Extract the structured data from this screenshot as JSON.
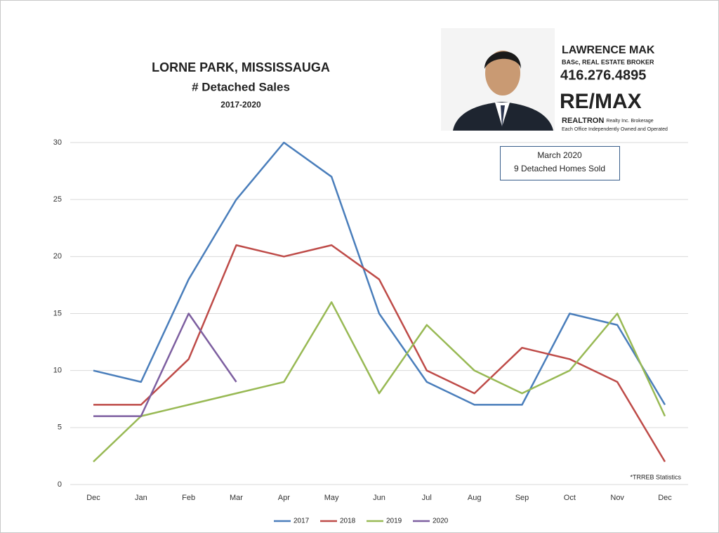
{
  "chart_data": {
    "type": "line",
    "title": "LORNE PARK, MISSISSAUGA",
    "subtitle": "# Detached Sales",
    "period": "2017-2020",
    "categories": [
      "Dec",
      "Jan",
      "Feb",
      "Mar",
      "Apr",
      "May",
      "Jun",
      "Jul",
      "Aug",
      "Sep",
      "Oct",
      "Nov",
      "Dec"
    ],
    "series": [
      {
        "name": "2017",
        "color": "#4a7ebb",
        "values": [
          10,
          9,
          18,
          25,
          30,
          27,
          15,
          9,
          7,
          7,
          15,
          14,
          7
        ]
      },
      {
        "name": "2018",
        "color": "#be4b48",
        "values": [
          7,
          7,
          11,
          21,
          20,
          21,
          18,
          10,
          8,
          12,
          11,
          9,
          2
        ]
      },
      {
        "name": "2019",
        "color": "#98b954",
        "values": [
          2,
          6,
          7,
          8,
          9,
          16,
          8,
          14,
          10,
          8,
          10,
          15,
          6
        ]
      },
      {
        "name": "2020",
        "color": "#7d5fa0",
        "values": [
          6,
          6,
          15,
          9,
          null,
          null,
          null,
          null,
          null,
          null,
          null,
          null,
          null
        ]
      }
    ],
    "ylim": [
      0,
      30
    ],
    "yticks": [
      0,
      5,
      10,
      15,
      20,
      25,
      30
    ],
    "grid": true,
    "legend": "bottom",
    "annotation": [
      "March 2020",
      "9 Detached Homes Sold"
    ],
    "source_note": "*TRREB Statistics",
    "branding": {
      "name": "LAWRENCE MAK",
      "credentials": "BASc, REAL ESTATE BROKER",
      "phone": "416.276.4895",
      "brand": "RE/MAX",
      "office": "REALTRON",
      "office_suffix": "Realty Inc. Brokerage",
      "disclaimer": "Each Office Independently Owned and Operated"
    }
  }
}
